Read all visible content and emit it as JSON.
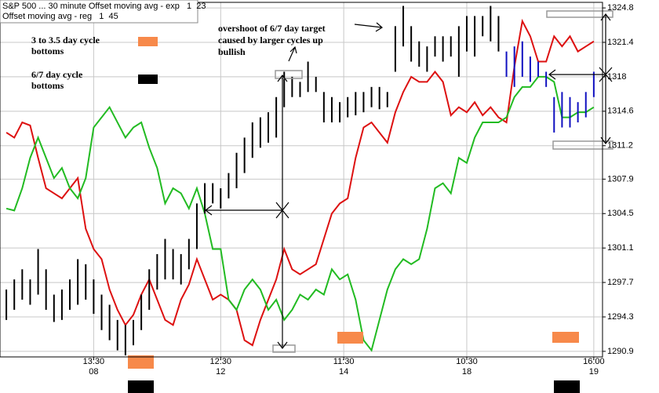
{
  "chart_data": {
    "type": "ohlc",
    "title": "S&P 500 ... 30 minute Offset moving avg - exp   1  23",
    "subtitle": "Offset moving avg - reg   1  45",
    "xlim": [
      -0.8,
      75.1
    ],
    "ylim": [
      1290.35,
      1325.35
    ],
    "yticks": [
      1324.8,
      1321.4,
      1318,
      1314.6,
      1311.2,
      1307.9,
      1304.5,
      1301.1,
      1297.7,
      1294.3,
      1290.9
    ],
    "xticks": [
      {
        "value": 11,
        "label": "13:30"
      },
      {
        "value": 27,
        "label": "12:30"
      },
      {
        "value": 42.5,
        "label": "11:30"
      },
      {
        "value": 58,
        "label": "10:30"
      },
      {
        "value": 74,
        "label": "16:00"
      }
    ],
    "date_ticks": [
      {
        "value": 11,
        "label": "08"
      },
      {
        "value": 27,
        "label": "12"
      },
      {
        "value": 42.5,
        "label": "14"
      },
      {
        "value": 58,
        "label": "18"
      },
      {
        "value": 74,
        "label": "19"
      }
    ],
    "grid": true,
    "bars": [
      {
        "color": "#000000",
        "x": [
          0,
          1,
          2,
          3,
          4,
          5,
          6,
          7,
          8,
          9,
          10,
          11,
          12,
          13,
          14,
          15,
          16,
          17,
          18,
          19,
          20,
          21,
          22,
          23,
          24,
          25,
          26,
          27,
          28,
          29,
          30,
          31,
          32,
          33,
          34,
          35,
          36,
          37,
          38,
          39,
          40,
          41,
          42,
          43,
          44,
          45,
          46,
          47,
          48,
          49,
          50,
          51,
          52,
          53,
          54,
          55,
          56,
          57,
          58,
          59,
          60,
          61,
          62
        ],
        "high": [
          1297,
          1298,
          1299,
          1298,
          1301,
          1299,
          1296.5,
          1297,
          1298,
          1300,
          1299.5,
          1298,
          1296.5,
          1295.5,
          1294,
          1293.5,
          1294,
          1296.5,
          1299,
          1300.5,
          1302,
          1301,
          1300.5,
          1302,
          1305.5,
          1307.5,
          1307.5,
          1307,
          1308.5,
          1310.5,
          1312,
          1313.5,
          1314,
          1314.5,
          1316,
          1318.5,
          1318,
          1317.5,
          1319.5,
          1318,
          1316.5,
          1316,
          1315.5,
          1316,
          1316.5,
          1316.5,
          1317,
          1317,
          1316.5,
          1323,
          1325,
          1323,
          1321.5,
          1321,
          1322,
          1322,
          1322,
          1323,
          1324,
          1324,
          1324,
          1325,
          1324
        ],
        "low": [
          1294,
          1295,
          1296,
          1295.5,
          1296.5,
          1295,
          1293.8,
          1294,
          1295,
          1295.5,
          1296,
          1294.6,
          1293,
          1292,
          1291,
          1290.5,
          1291.5,
          1293,
          1295,
          1297,
          1298,
          1298,
          1297.5,
          1299,
          1301,
          1304.5,
          1305.5,
          1305,
          1306,
          1307,
          1308.5,
          1310,
          1311,
          1311.5,
          1312,
          1315,
          1316,
          1316,
          1316.5,
          1316.5,
          1313.5,
          1313.5,
          1313.5,
          1314,
          1314.2,
          1314.5,
          1315,
          1314.8,
          1315,
          1318.5,
          1321,
          1319.5,
          1319,
          1318.5,
          1320,
          1319.5,
          1320,
          1318,
          1320.5,
          1320,
          1322,
          1321.5,
          1320.5
        ]
      },
      {
        "color": "#1010c0",
        "x": [
          63,
          64,
          65,
          66,
          67,
          68,
          69,
          70,
          71,
          72,
          73,
          74
        ],
        "high": [
          1320.5,
          1321,
          1321.5,
          1320,
          1319.5,
          1318.5,
          1316,
          1316.5,
          1316,
          1315.5,
          1316.5,
          1318.5
        ],
        "low": [
          1318,
          1317,
          1318,
          1317.5,
          1318,
          1317,
          1312.5,
          1313,
          1313,
          1313.5,
          1314,
          1316
        ]
      }
    ],
    "x": [
      0,
      1,
      2,
      3,
      4,
      5,
      6,
      7,
      8,
      9,
      10,
      11,
      12,
      13,
      14,
      15,
      16,
      17,
      18,
      19,
      20,
      21,
      22,
      23,
      24,
      25,
      26,
      27,
      28,
      29,
      30,
      31,
      32,
      33,
      34,
      35,
      36,
      37,
      38,
      39,
      40,
      41,
      42,
      43,
      44,
      45,
      46,
      47,
      48,
      49,
      50,
      51,
      52,
      53,
      54,
      55,
      56,
      57,
      58,
      59,
      60,
      61,
      62,
      63,
      64,
      65,
      66,
      67,
      68,
      69,
      70,
      71,
      72,
      73,
      74
    ],
    "lines": [
      {
        "color": "#dd1111",
        "values": [
          1312.5,
          1312,
          1313.5,
          1313.2,
          1310,
          1307,
          1306.5,
          1306,
          1307,
          1308,
          1303,
          1301,
          1300,
          1297,
          1295,
          1293.5,
          1294.5,
          1296.5,
          1298,
          1296,
          1294,
          1293.5,
          1296,
          1297.5,
          1300,
          1298,
          1296,
          1296.5,
          1296,
          1295,
          1292,
          1291.5,
          1294,
          1296,
          1298,
          1301,
          1299,
          1298.5,
          1299,
          1299.5,
          1302,
          1304.5,
          1305.5,
          1306,
          1310,
          1313,
          1313.5,
          1312.5,
          1311.5,
          1314.5,
          1316.5,
          1318,
          1317.5,
          1317.5,
          1318.5,
          1317.5,
          1314.2,
          1315,
          1314.5,
          1315.5,
          1314.2,
          1315,
          1314,
          1313.5,
          1319,
          1323.5,
          1322,
          1319.5,
          1319.5,
          1322,
          1321,
          1322,
          1320.5,
          1321,
          1321.5
        ]
      },
      {
        "color": "#22bb22",
        "values": [
          1305,
          1304.8,
          1307,
          1310,
          1312,
          1310,
          1308,
          1309,
          1307,
          1306,
          1308,
          1313,
          1314,
          1315,
          1313.5,
          1312,
          1313,
          1313.5,
          1311,
          1309,
          1305.5,
          1307,
          1306.5,
          1305,
          1307,
          1304.5,
          1301,
          1301,
          1296,
          1295,
          1297,
          1298,
          1297,
          1295,
          1296,
          1294,
          1295,
          1296.5,
          1296,
          1297,
          1296.5,
          1299,
          1298,
          1298.5,
          1296,
          1292,
          1291,
          1294,
          1297,
          1299,
          1300,
          1299.5,
          1300,
          1303,
          1307,
          1307.5,
          1306.5,
          1310,
          1309.5,
          1312,
          1313.5,
          1313.5,
          1313.5,
          1314,
          1316,
          1317,
          1317,
          1318,
          1318,
          1317.5,
          1314,
          1314,
          1314.5,
          1314.5,
          1315
        ]
      }
    ],
    "legend": [
      {
        "label": [
          "3 to 3.5 day cycle",
          "bottoms"
        ],
        "color": "#f7894a"
      },
      {
        "label": [
          "6/7 day cycle",
          "bottoms"
        ],
        "color": "#000000"
      }
    ],
    "annotation": [
      "overshoot of 6/7 day target",
      "caused by larger cycles up",
      "bullish"
    ]
  }
}
